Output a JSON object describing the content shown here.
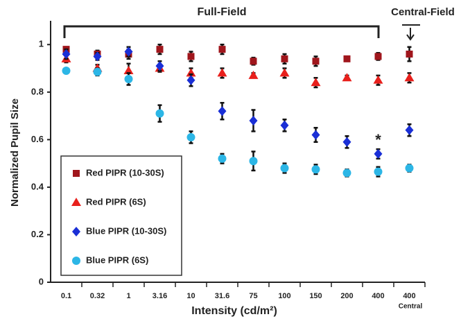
{
  "chart_data": {
    "type": "scatter",
    "x_label": "Intensity (cd/m²)",
    "y_label": "Normalized Pupil Size",
    "categories": [
      "0.1",
      "0.32",
      "1",
      "3.16",
      "10",
      "31.6",
      "75",
      "100",
      "150",
      "200",
      "400",
      "400"
    ],
    "annotations": {
      "full_field": "Full-Field",
      "central_field": "Central-Field",
      "significance": "*",
      "central": "Central"
    },
    "ylim": [
      0,
      1.1
    ],
    "yticks": [
      0,
      0.2,
      0.4,
      0.6,
      0.8,
      1
    ],
    "grid": false,
    "legend_position": "lower left",
    "series": [
      {
        "name": "Red PIPR (10-30S)",
        "color": "#a0161c",
        "marker": "square",
        "values": [
          0.98,
          0.96,
          0.96,
          0.98,
          0.95,
          0.98,
          0.93,
          0.94,
          0.93,
          0.94,
          0.95,
          0.96
        ],
        "errors": [
          0.01,
          0.015,
          0.02,
          0.02,
          0.02,
          0.02,
          0.015,
          0.02,
          0.02,
          0.01,
          0.015,
          0.03
        ]
      },
      {
        "name": "Red PIPR (6S)",
        "color": "#e8201c",
        "marker": "triangle",
        "values": [
          0.94,
          0.9,
          0.89,
          0.9,
          0.88,
          0.88,
          0.87,
          0.88,
          0.84,
          0.86,
          0.85,
          0.86
        ],
        "errors": [
          0.015,
          0.015,
          0.03,
          0.015,
          0.02,
          0.02,
          0.01,
          0.02,
          0.02,
          0.01,
          0.02,
          0.02
        ]
      },
      {
        "name": "Blue PIPR (10-30S)",
        "color": "#1a2fd6",
        "marker": "diamond",
        "values": [
          0.96,
          0.95,
          0.97,
          0.91,
          0.85,
          0.72,
          0.68,
          0.66,
          0.62,
          0.59,
          0.54,
          0.64
        ],
        "errors": [
          0.02,
          0.015,
          0.02,
          0.02,
          0.025,
          0.035,
          0.045,
          0.025,
          0.03,
          0.025,
          0.02,
          0.025
        ]
      },
      {
        "name": "Blue PIPR (6S)",
        "color": "#2cb6e6",
        "marker": "circle",
        "values": [
          0.89,
          0.885,
          0.855,
          0.71,
          0.61,
          0.52,
          0.51,
          0.48,
          0.475,
          0.46,
          0.465,
          0.48
        ],
        "errors": [
          0.01,
          0.015,
          0.025,
          0.035,
          0.025,
          0.02,
          0.04,
          0.02,
          0.02,
          0.015,
          0.02,
          0.015
        ]
      }
    ]
  }
}
